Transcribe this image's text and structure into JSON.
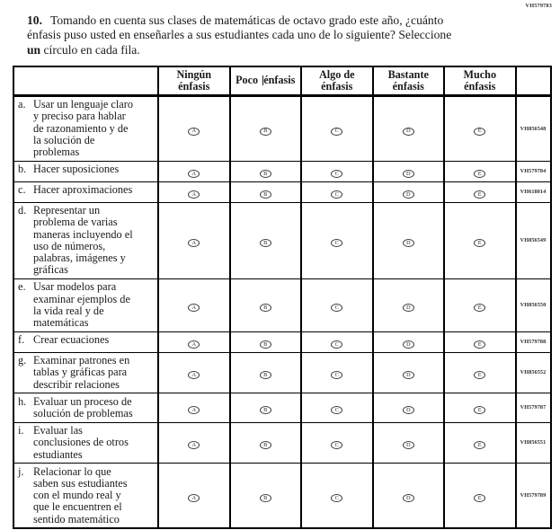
{
  "page": {
    "top_right_code": "VH579783"
  },
  "question": {
    "number": "10.",
    "text_before_bold": "Tomando en cuenta sus clases de matemáticas de octavo grado este año, ¿cuánto\nénfasis puso usted en enseñarles a sus estudiantes cada uno de lo siguiente? Seleccione\n",
    "bold_word": "un",
    "text_after_bold": " círculo en cada fila."
  },
  "table": {
    "option_letters": [
      "A",
      "B",
      "C",
      "D",
      "E"
    ],
    "columns": [
      {
        "line1": "Ningún",
        "line2": "énfasis",
        "single_line": false,
        "caret": false
      },
      {
        "line1": "Poco",
        "line2": "énfasis",
        "single_line": true,
        "caret": true
      },
      {
        "line1": "Algo de",
        "line2": "énfasis",
        "single_line": false,
        "caret": false
      },
      {
        "line1": "Bastante",
        "line2": "énfasis",
        "single_line": false,
        "caret": false
      },
      {
        "line1": "Mucho",
        "line2": "énfasis",
        "single_line": false,
        "caret": false
      }
    ],
    "rows": [
      {
        "letter": "a.",
        "text": "Usar un lenguaje claro\ny preciso para hablar\nde razonamiento y de\nla solución de\nproblemas",
        "code": "VH856548"
      },
      {
        "letter": "b.",
        "text": "Hacer suposiciones",
        "code": "VH579784"
      },
      {
        "letter": "c.",
        "text": "Hacer aproximaciones",
        "code": "VH618014"
      },
      {
        "letter": "d.",
        "text": "Representar un\nproblema de varias\nmaneras incluyendo el\nuso de números,\npalabras, imágenes y\ngráficas",
        "code": "VH856549"
      },
      {
        "letter": "e.",
        "text": "Usar modelos para\nexaminar ejemplos de\nla vida real y de\nmatemáticas",
        "code": "VH856550"
      },
      {
        "letter": "f.",
        "text": "Crear ecuaciones",
        "code": "VH579788"
      },
      {
        "letter": "g.",
        "text": "Examinar patrones en\ntablas y gráficas para\ndescribir relaciones",
        "code": "VH856552"
      },
      {
        "letter": "h.",
        "text": "Evaluar un proceso de\nsolución de problemas",
        "code": "VH579787"
      },
      {
        "letter": "i.",
        "text": "Evaluar las\nconclusiones de otros\nestudiantes",
        "code": "VH856551"
      },
      {
        "letter": "j.",
        "text": "Relacionar lo que\nsaben sus estudiantes\ncon el mundo real y\nque le encuentren el\nsentido matemático",
        "code": "VH579789"
      }
    ]
  }
}
